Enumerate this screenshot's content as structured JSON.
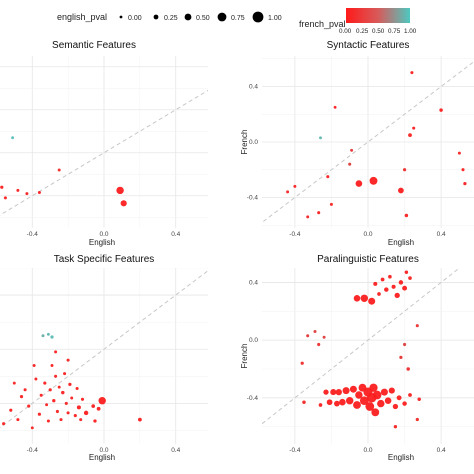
{
  "legend": {
    "size_title": "english_pval",
    "size_labels": [
      "0.00",
      "0.25",
      "0.50",
      "0.75",
      "1.00"
    ],
    "color_title": "french_pval",
    "color_labels": [
      "0.00",
      "0.25",
      "0.50",
      "0.75",
      "1.00"
    ],
    "color_low": "#ff1a1a",
    "color_high": "#4dc8c0"
  },
  "chart_data": [
    {
      "type": "scatter",
      "title": "Semantic Features",
      "xlabel": "English",
      "ylabel": "",
      "xticks": [
        "-0.4",
        "0.0",
        "0.4"
      ],
      "yticks": [],
      "xlim": [
        -0.58,
        0.58
      ],
      "ylim": [
        -0.7,
        0.9
      ],
      "reference_line": "y = x (dashed)",
      "points": [
        {
          "x": -0.57,
          "y": -0.32,
          "eng": 0.05,
          "fr": 0.02
        },
        {
          "x": -0.55,
          "y": -0.42,
          "eng": 0.03,
          "fr": 0.05
        },
        {
          "x": -0.48,
          "y": -0.35,
          "eng": 0.02,
          "fr": 0.03
        },
        {
          "x": -0.43,
          "y": -0.38,
          "eng": 0.02,
          "fr": 0.04
        },
        {
          "x": -0.36,
          "y": -0.37,
          "eng": 0.03,
          "fr": 0.02
        },
        {
          "x": -0.25,
          "y": -0.16,
          "eng": 0.02,
          "fr": 0.08
        },
        {
          "x": -0.51,
          "y": 0.14,
          "eng": 0.01,
          "fr": 0.95
        },
        {
          "x": 0.09,
          "y": -0.35,
          "eng": 0.55,
          "fr": 0.02
        },
        {
          "x": 0.11,
          "y": -0.47,
          "eng": 0.4,
          "fr": 0.02
        }
      ]
    },
    {
      "type": "scatter",
      "title": "Syntactic Features",
      "xlabel": "English",
      "ylabel": "French",
      "xticks": [
        "-0.4",
        "0.0",
        "0.4"
      ],
      "yticks": [
        "0.4",
        "0.0",
        "-0.4"
      ],
      "xlim": [
        -0.58,
        0.58
      ],
      "ylim": [
        -0.62,
        0.62
      ],
      "reference_line": "y = x (dashed)",
      "points": [
        {
          "x": -0.44,
          "y": -0.36,
          "eng": 0.02,
          "fr": 0.05
        },
        {
          "x": -0.4,
          "y": -0.32,
          "eng": 0.02,
          "fr": 0.04
        },
        {
          "x": -0.33,
          "y": -0.54,
          "eng": 0.02,
          "fr": 0.06
        },
        {
          "x": -0.27,
          "y": -0.51,
          "eng": 0.03,
          "fr": 0.03
        },
        {
          "x": -0.26,
          "y": 0.03,
          "eng": 0.02,
          "fr": 0.9
        },
        {
          "x": -0.22,
          "y": -0.25,
          "eng": 0.03,
          "fr": 0.04
        },
        {
          "x": -0.2,
          "y": -0.45,
          "eng": 0.03,
          "fr": 0.05
        },
        {
          "x": -0.18,
          "y": 0.25,
          "eng": 0.01,
          "fr": 0.02
        },
        {
          "x": -0.1,
          "y": -0.16,
          "eng": 0.03,
          "fr": 0.2
        },
        {
          "x": -0.09,
          "y": -0.06,
          "eng": 0.02,
          "fr": 0.15
        },
        {
          "x": -0.05,
          "y": -0.3,
          "eng": 0.45,
          "fr": 0.02
        },
        {
          "x": 0.03,
          "y": -0.28,
          "eng": 0.6,
          "fr": 0.02
        },
        {
          "x": 0.18,
          "y": -0.35,
          "eng": 0.35,
          "fr": 0.03
        },
        {
          "x": 0.2,
          "y": -0.2,
          "eng": 0.05,
          "fr": 0.1
        },
        {
          "x": 0.21,
          "y": -0.53,
          "eng": 0.08,
          "fr": 0.04
        },
        {
          "x": 0.23,
          "y": 0.05,
          "eng": 0.12,
          "fr": 0.05
        },
        {
          "x": 0.25,
          "y": 0.1,
          "eng": 0.03,
          "fr": 0.04
        },
        {
          "x": 0.24,
          "y": 0.5,
          "eng": 0.03,
          "fr": 0.02
        },
        {
          "x": 0.4,
          "y": 0.23,
          "eng": 0.08,
          "fr": 0.03
        },
        {
          "x": 0.5,
          "y": -0.08,
          "eng": 0.02,
          "fr": 0.05
        },
        {
          "x": 0.52,
          "y": -0.2,
          "eng": 0.03,
          "fr": 0.03
        },
        {
          "x": 0.53,
          "y": -0.3,
          "eng": 0.05,
          "fr": 0.04
        }
      ]
    },
    {
      "type": "scatter",
      "title": "Task Specific Features",
      "xlabel": "English",
      "ylabel": "",
      "xticks": [
        "-0.4",
        "0.0",
        "0.4"
      ],
      "yticks": [],
      "xlim": [
        -0.58,
        0.58
      ],
      "ylim": [
        -0.7,
        0.6
      ],
      "reference_line": "y = x (dashed)",
      "points": [
        {
          "x": -0.56,
          "y": -0.55,
          "eng": 0.03,
          "fr": 0.04
        },
        {
          "x": -0.52,
          "y": -0.45,
          "eng": 0.04,
          "fr": 0.03
        },
        {
          "x": -0.5,
          "y": -0.25,
          "eng": 0.02,
          "fr": 0.05
        },
        {
          "x": -0.48,
          "y": -0.52,
          "eng": 0.03,
          "fr": 0.02
        },
        {
          "x": -0.46,
          "y": -0.35,
          "eng": 0.05,
          "fr": 0.04
        },
        {
          "x": -0.44,
          "y": -0.3,
          "eng": 0.03,
          "fr": 0.03
        },
        {
          "x": -0.42,
          "y": -0.42,
          "eng": 0.04,
          "fr": 0.02
        },
        {
          "x": -0.4,
          "y": -0.58,
          "eng": 0.02,
          "fr": 0.05
        },
        {
          "x": -0.39,
          "y": -0.12,
          "eng": 0.03,
          "fr": 0.06
        },
        {
          "x": -0.38,
          "y": -0.22,
          "eng": 0.02,
          "fr": 0.03
        },
        {
          "x": -0.36,
          "y": -0.48,
          "eng": 0.05,
          "fr": 0.04
        },
        {
          "x": -0.35,
          "y": -0.34,
          "eng": 0.03,
          "fr": 0.02
        },
        {
          "x": -0.33,
          "y": -0.25,
          "eng": 0.04,
          "fr": 0.03
        },
        {
          "x": -0.32,
          "y": -0.41,
          "eng": 0.02,
          "fr": 0.05
        },
        {
          "x": -0.31,
          "y": -0.53,
          "eng": 0.03,
          "fr": 0.03
        },
        {
          "x": -0.3,
          "y": -0.3,
          "eng": 0.05,
          "fr": 0.04
        },
        {
          "x": -0.29,
          "y": -0.12,
          "eng": 0.02,
          "fr": 0.03
        },
        {
          "x": -0.28,
          "y": -0.38,
          "eng": 0.06,
          "fr": 0.02
        },
        {
          "x": -0.27,
          "y": -0.2,
          "eng": 0.03,
          "fr": 0.04
        },
        {
          "x": -0.26,
          "y": -0.46,
          "eng": 0.04,
          "fr": 0.05
        },
        {
          "x": -0.25,
          "y": -0.28,
          "eng": 0.02,
          "fr": 0.03
        },
        {
          "x": -0.24,
          "y": -0.52,
          "eng": 0.03,
          "fr": 0.02
        },
        {
          "x": -0.23,
          "y": -0.32,
          "eng": 0.08,
          "fr": 0.04
        },
        {
          "x": -0.22,
          "y": -0.18,
          "eng": 0.03,
          "fr": 0.03
        },
        {
          "x": -0.21,
          "y": -0.4,
          "eng": 0.04,
          "fr": 0.05
        },
        {
          "x": -0.2,
          "y": -0.47,
          "eng": 0.03,
          "fr": 0.02
        },
        {
          "x": -0.19,
          "y": -0.26,
          "eng": 0.05,
          "fr": 0.03
        },
        {
          "x": -0.18,
          "y": -0.36,
          "eng": 0.02,
          "fr": 0.04
        },
        {
          "x": -0.16,
          "y": -0.49,
          "eng": 0.04,
          "fr": 0.03
        },
        {
          "x": -0.15,
          "y": -0.29,
          "eng": 0.03,
          "fr": 0.02
        },
        {
          "x": -0.14,
          "y": -0.43,
          "eng": 0.15,
          "fr": 0.03
        },
        {
          "x": -0.13,
          "y": -0.52,
          "eng": 0.03,
          "fr": 0.05
        },
        {
          "x": -0.12,
          "y": -0.37,
          "eng": 0.04,
          "fr": 0.02
        },
        {
          "x": -0.1,
          "y": -0.47,
          "eng": 0.2,
          "fr": 0.03
        },
        {
          "x": -0.06,
          "y": -0.42,
          "eng": 0.1,
          "fr": 0.04
        },
        {
          "x": -0.05,
          "y": -0.53,
          "eng": 0.06,
          "fr": 0.02
        },
        {
          "x": -0.03,
          "y": -0.44,
          "eng": 0.12,
          "fr": 0.03
        },
        {
          "x": -0.01,
          "y": -0.38,
          "eng": 0.55,
          "fr": 0.02
        },
        {
          "x": 0.2,
          "y": -0.52,
          "eng": 0.12,
          "fr": 0.03
        },
        {
          "x": -0.27,
          "y": -0.02,
          "eng": 0.02,
          "fr": 0.02
        },
        {
          "x": -0.2,
          "y": -0.08,
          "eng": 0.03,
          "fr": 0.04
        },
        {
          "x": -0.34,
          "y": 0.1,
          "eng": 0.02,
          "fr": 0.85
        },
        {
          "x": -0.31,
          "y": 0.11,
          "eng": 0.02,
          "fr": 0.9
        },
        {
          "x": -0.29,
          "y": 0.09,
          "eng": 0.05,
          "fr": 0.92
        }
      ]
    },
    {
      "type": "scatter",
      "title": "Paralinguistic Features",
      "xlabel": "English",
      "ylabel": "French",
      "xticks": [
        "-0.4",
        "0.0",
        "0.4"
      ],
      "yticks": [
        "0.4",
        "0.0",
        "-0.4"
      ],
      "xlim": [
        -0.58,
        0.58
      ],
      "ylim": [
        -0.72,
        0.5
      ],
      "reference_line": "y = x (dashed)",
      "points": [
        {
          "x": -0.36,
          "y": -0.16,
          "eng": 0.05,
          "fr": 0.1
        },
        {
          "x": -0.35,
          "y": -0.43,
          "eng": 0.08,
          "fr": 0.05
        },
        {
          "x": -0.33,
          "y": 0.03,
          "eng": 0.03,
          "fr": 0.15
        },
        {
          "x": -0.29,
          "y": 0.06,
          "eng": 0.03,
          "fr": 0.2
        },
        {
          "x": -0.27,
          "y": -0.03,
          "eng": 0.04,
          "fr": 0.12
        },
        {
          "x": -0.26,
          "y": -0.45,
          "eng": 0.1,
          "fr": 0.04
        },
        {
          "x": -0.24,
          "y": 0.02,
          "eng": 0.02,
          "fr": 0.18
        },
        {
          "x": -0.23,
          "y": -0.36,
          "eng": 0.3,
          "fr": 0.03
        },
        {
          "x": -0.21,
          "y": -0.43,
          "eng": 0.35,
          "fr": 0.02
        },
        {
          "x": -0.19,
          "y": -0.36,
          "eng": 0.4,
          "fr": 0.03
        },
        {
          "x": -0.17,
          "y": -0.44,
          "eng": 0.35,
          "fr": 0.02
        },
        {
          "x": -0.16,
          "y": -0.36,
          "eng": 0.42,
          "fr": 0.03
        },
        {
          "x": -0.14,
          "y": -0.43,
          "eng": 0.45,
          "fr": 0.02
        },
        {
          "x": -0.12,
          "y": -0.35,
          "eng": 0.5,
          "fr": 0.03
        },
        {
          "x": -0.1,
          "y": -0.42,
          "eng": 0.55,
          "fr": 0.02
        },
        {
          "x": -0.08,
          "y": -0.34,
          "eng": 0.5,
          "fr": 0.02
        },
        {
          "x": -0.06,
          "y": -0.45,
          "eng": 0.6,
          "fr": 0.03
        },
        {
          "x": -0.05,
          "y": -0.38,
          "eng": 0.55,
          "fr": 0.02
        },
        {
          "x": -0.03,
          "y": -0.33,
          "eng": 0.6,
          "fr": 0.02
        },
        {
          "x": -0.02,
          "y": -0.42,
          "eng": 0.7,
          "fr": 0.03
        },
        {
          "x": 0.0,
          "y": -0.36,
          "eng": 0.75,
          "fr": 0.02
        },
        {
          "x": 0.01,
          "y": -0.46,
          "eng": 0.7,
          "fr": 0.02
        },
        {
          "x": 0.02,
          "y": -0.4,
          "eng": 0.8,
          "fr": 0.03
        },
        {
          "x": 0.03,
          "y": -0.33,
          "eng": 0.65,
          "fr": 0.02
        },
        {
          "x": 0.04,
          "y": -0.5,
          "eng": 0.6,
          "fr": 0.03
        },
        {
          "x": 0.05,
          "y": -0.38,
          "eng": 0.7,
          "fr": 0.02
        },
        {
          "x": 0.07,
          "y": -0.44,
          "eng": 0.55,
          "fr": 0.02
        },
        {
          "x": 0.09,
          "y": -0.36,
          "eng": 0.5,
          "fr": 0.03
        },
        {
          "x": 0.11,
          "y": -0.42,
          "eng": 0.45,
          "fr": 0.02
        },
        {
          "x": 0.13,
          "y": -0.35,
          "eng": 0.4,
          "fr": 0.03
        },
        {
          "x": 0.15,
          "y": -0.46,
          "eng": 0.3,
          "fr": 0.02
        },
        {
          "x": 0.17,
          "y": -0.4,
          "eng": 0.25,
          "fr": 0.04
        },
        {
          "x": 0.2,
          "y": -0.44,
          "eng": 0.2,
          "fr": 0.03
        },
        {
          "x": 0.23,
          "y": -0.38,
          "eng": 0.12,
          "fr": 0.05
        },
        {
          "x": 0.28,
          "y": -0.41,
          "eng": 0.08,
          "fr": 0.06
        },
        {
          "x": -0.06,
          "y": 0.29,
          "eng": 0.45,
          "fr": 0.02
        },
        {
          "x": -0.02,
          "y": 0.29,
          "eng": 0.55,
          "fr": 0.03
        },
        {
          "x": 0.02,
          "y": 0.27,
          "eng": 0.5,
          "fr": 0.02
        },
        {
          "x": 0.04,
          "y": 0.39,
          "eng": 0.15,
          "fr": 0.03
        },
        {
          "x": 0.06,
          "y": 0.32,
          "eng": 0.1,
          "fr": 0.04
        },
        {
          "x": 0.08,
          "y": 0.42,
          "eng": 0.12,
          "fr": 0.03
        },
        {
          "x": 0.1,
          "y": 0.35,
          "eng": 0.2,
          "fr": 0.02
        },
        {
          "x": 0.12,
          "y": 0.44,
          "eng": 0.1,
          "fr": 0.05
        },
        {
          "x": 0.14,
          "y": 0.37,
          "eng": 0.15,
          "fr": 0.03
        },
        {
          "x": 0.16,
          "y": 0.31,
          "eng": 0.3,
          "fr": 0.02
        },
        {
          "x": 0.18,
          "y": 0.4,
          "eng": 0.2,
          "fr": 0.04
        },
        {
          "x": 0.2,
          "y": 0.36,
          "eng": 0.25,
          "fr": 0.03
        },
        {
          "x": 0.21,
          "y": 0.47,
          "eng": 0.08,
          "fr": 0.02
        },
        {
          "x": 0.23,
          "y": 0.43,
          "eng": 0.1,
          "fr": 0.05
        },
        {
          "x": 0.2,
          "y": -0.03,
          "eng": 0.04,
          "fr": 0.2
        },
        {
          "x": 0.18,
          "y": -0.12,
          "eng": 0.05,
          "fr": 0.15
        },
        {
          "x": 0.22,
          "y": -0.2,
          "eng": 0.08,
          "fr": 0.1
        },
        {
          "x": 0.27,
          "y": 0.1,
          "eng": 0.03,
          "fr": 0.12
        },
        {
          "x": 0.27,
          "y": -0.55,
          "eng": 0.05,
          "fr": 0.08
        },
        {
          "x": 0.15,
          "y": -0.6,
          "eng": 0.06,
          "fr": 0.05
        }
      ]
    }
  ]
}
